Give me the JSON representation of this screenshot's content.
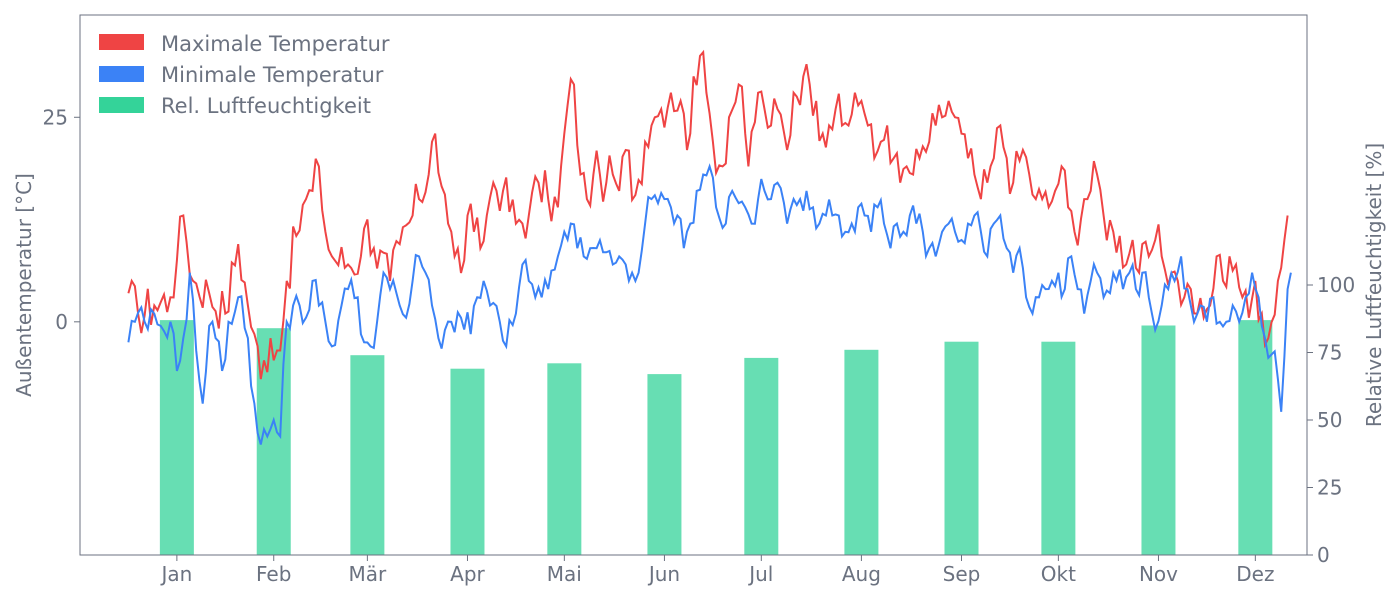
{
  "chart_data": {
    "type": "line+bar",
    "title": "",
    "colors": {
      "max": "#ef4444",
      "min": "#3b82f6",
      "humidity": "#34d399",
      "axis": "#6b7280"
    },
    "left_axis": {
      "label": "Außentemperatur [°C]",
      "ylim": [
        -28.5,
        37.5
      ],
      "ticks": [
        0,
        25
      ]
    },
    "right_axis": {
      "label": "Relative Luftfeuchtigkeit [%]",
      "ylim": [
        0,
        200
      ],
      "ticks": [
        0,
        25,
        50,
        75,
        100
      ]
    },
    "x_axis": {
      "xlim": [
        -15,
        365
      ],
      "ticks": [
        15,
        45,
        74,
        105,
        135,
        166,
        196,
        227,
        258,
        288,
        319,
        349
      ],
      "labels": [
        "Jan",
        "Feb",
        "Mär",
        "Apr",
        "Mai",
        "Jun",
        "Jul",
        "Aug",
        "Sep",
        "Okt",
        "Nov",
        "Dez"
      ]
    },
    "legend": {
      "position": "top-left",
      "entries": [
        {
          "key": "max",
          "label": "Maximale Temperatur"
        },
        {
          "key": "min",
          "label": "Minimale Temperatur"
        },
        {
          "key": "humidity",
          "label": "Rel. Luftfeuchtigkeit"
        }
      ]
    },
    "humidity_bars": {
      "x": [
        15,
        45,
        74,
        105,
        135,
        166,
        196,
        227,
        258,
        288,
        319,
        349
      ],
      "values": [
        87,
        84,
        74,
        69,
        71,
        67,
        73,
        76,
        79,
        79,
        85,
        87
      ]
    },
    "max_anchors": [
      [
        0,
        3.5
      ],
      [
        3,
        1
      ],
      [
        8,
        2
      ],
      [
        13,
        3
      ],
      [
        15,
        7.5
      ],
      [
        17,
        13
      ],
      [
        20,
        5
      ],
      [
        25,
        3.5
      ],
      [
        30,
        1
      ],
      [
        34,
        9.5
      ],
      [
        37,
        2
      ],
      [
        39,
        -1.5
      ],
      [
        41,
        -7
      ],
      [
        44,
        -2
      ],
      [
        46,
        -3.5
      ],
      [
        47,
        -3.5
      ],
      [
        49,
        5
      ],
      [
        52,
        10.5
      ],
      [
        55,
        15
      ],
      [
        57,
        16
      ],
      [
        59,
        19
      ],
      [
        61,
        11
      ],
      [
        63,
        8
      ],
      [
        68,
        7
      ],
      [
        72,
        8
      ],
      [
        74,
        12.5
      ],
      [
        76,
        9
      ],
      [
        81,
        5
      ],
      [
        84,
        9.5
      ],
      [
        88,
        13
      ],
      [
        90,
        15
      ],
      [
        93,
        18
      ],
      [
        94,
        22
      ],
      [
        95,
        23
      ],
      [
        99,
        12
      ],
      [
        100,
        11
      ],
      [
        101,
        8
      ],
      [
        104,
        7.5
      ],
      [
        105,
        13
      ],
      [
        107,
        11
      ],
      [
        109,
        9
      ],
      [
        111,
        13
      ],
      [
        113,
        17
      ],
      [
        116,
        16
      ],
      [
        120,
        12
      ],
      [
        124,
        13
      ],
      [
        127,
        17
      ],
      [
        130,
        15
      ],
      [
        133,
        14
      ],
      [
        136,
        26.5
      ],
      [
        138,
        29
      ],
      [
        140,
        18
      ],
      [
        142,
        15
      ],
      [
        144,
        18
      ],
      [
        146,
        18
      ],
      [
        148,
        17
      ],
      [
        150,
        18
      ],
      [
        152,
        16
      ],
      [
        154,
        21
      ],
      [
        157,
        15.5
      ],
      [
        160,
        22
      ],
      [
        162,
        24
      ],
      [
        163,
        25
      ],
      [
        165,
        26
      ],
      [
        168,
        28
      ],
      [
        171,
        27
      ],
      [
        173,
        21
      ],
      [
        175,
        30
      ],
      [
        177,
        32.5
      ],
      [
        179,
        28
      ],
      [
        181,
        22
      ],
      [
        184,
        19
      ],
      [
        186,
        25
      ],
      [
        189,
        29
      ],
      [
        191,
        23
      ],
      [
        192,
        19
      ],
      [
        195,
        28
      ],
      [
        197,
        26
      ],
      [
        199,
        24
      ],
      [
        201,
        26
      ],
      [
        204,
        21
      ],
      [
        206,
        28
      ],
      [
        209,
        30
      ],
      [
        211,
        29
      ],
      [
        213,
        27
      ],
      [
        215,
        23
      ],
      [
        217,
        24
      ],
      [
        219,
        26
      ],
      [
        221,
        24
      ],
      [
        223,
        24
      ],
      [
        225,
        28
      ],
      [
        227,
        27
      ],
      [
        229,
        24
      ],
      [
        231,
        20
      ],
      [
        233,
        22
      ],
      [
        235,
        24
      ],
      [
        237,
        20
      ],
      [
        239,
        17
      ],
      [
        241,
        19
      ],
      [
        243,
        18
      ],
      [
        245,
        20
      ],
      [
        248,
        22
      ],
      [
        250,
        24
      ],
      [
        252,
        25
      ],
      [
        254,
        27
      ],
      [
        256,
        25
      ],
      [
        258,
        23
      ],
      [
        260,
        20
      ],
      [
        262,
        18
      ],
      [
        264,
        15
      ],
      [
        266,
        17
      ],
      [
        268,
        20
      ],
      [
        270,
        24
      ],
      [
        272,
        20
      ],
      [
        274,
        17
      ],
      [
        277,
        21
      ],
      [
        279,
        18
      ],
      [
        281,
        15
      ],
      [
        283,
        15
      ],
      [
        285,
        14
      ],
      [
        287,
        16
      ],
      [
        289,
        19
      ],
      [
        291,
        14
      ],
      [
        293,
        11
      ],
      [
        296,
        15
      ],
      [
        298,
        16
      ],
      [
        300,
        18
      ],
      [
        302,
        13
      ],
      [
        305,
        11
      ],
      [
        307,
        10.5
      ],
      [
        309,
        7
      ],
      [
        311,
        10
      ],
      [
        313,
        6
      ],
      [
        316,
        8
      ],
      [
        318,
        10
      ],
      [
        320,
        8
      ],
      [
        323,
        6
      ],
      [
        325,
        5
      ],
      [
        327,
        3
      ],
      [
        329,
        4
      ],
      [
        331,
        1
      ],
      [
        333,
        0.5
      ],
      [
        335,
        2
      ],
      [
        337,
        8
      ],
      [
        339,
        5
      ],
      [
        341,
        8
      ],
      [
        343,
        7
      ],
      [
        345,
        3
      ],
      [
        347,
        0.5
      ],
      [
        349,
        5
      ],
      [
        351,
        1
      ],
      [
        353,
        -2
      ],
      [
        356,
        5
      ],
      [
        358,
        10
      ],
      [
        359,
        13
      ]
    ],
    "max_noise": {
      "amp": 3.0,
      "seed": 17
    },
    "min_anchors": [
      [
        0,
        -2.5
      ],
      [
        2,
        0
      ],
      [
        5,
        0
      ],
      [
        10,
        -0.5
      ],
      [
        13,
        0
      ],
      [
        15,
        -6
      ],
      [
        17,
        -2
      ],
      [
        19,
        6
      ],
      [
        21,
        -3.5
      ],
      [
        23,
        -10
      ],
      [
        25,
        -0.5
      ],
      [
        27,
        -2
      ],
      [
        29,
        -6
      ],
      [
        31,
        0
      ],
      [
        34,
        3
      ],
      [
        37,
        -2
      ],
      [
        39,
        -10
      ],
      [
        41,
        -15
      ],
      [
        43,
        -14
      ],
      [
        45,
        -12
      ],
      [
        47,
        -14
      ],
      [
        49,
        0
      ],
      [
        51,
        2
      ],
      [
        53,
        2
      ],
      [
        55,
        0.5
      ],
      [
        57,
        5
      ],
      [
        59,
        2
      ],
      [
        61,
        0
      ],
      [
        63,
        -3
      ],
      [
        66,
        2
      ],
      [
        68,
        4
      ],
      [
        71,
        3
      ],
      [
        73,
        -2.5
      ],
      [
        75,
        -3
      ],
      [
        77,
        0
      ],
      [
        79,
        6
      ],
      [
        81,
        4
      ],
      [
        84,
        2
      ],
      [
        86,
        0.5
      ],
      [
        88,
        5
      ],
      [
        90,
        8
      ],
      [
        92,
        6
      ],
      [
        94,
        2
      ],
      [
        96,
        -2
      ],
      [
        98,
        -1
      ],
      [
        100,
        0
      ],
      [
        103,
        0.5
      ],
      [
        106,
        -1.5
      ],
      [
        108,
        3
      ],
      [
        110,
        5
      ],
      [
        112,
        2
      ],
      [
        115,
        0
      ],
      [
        117,
        -3
      ],
      [
        120,
        1
      ],
      [
        122,
        7
      ],
      [
        124,
        5
      ],
      [
        126,
        3
      ],
      [
        128,
        3
      ],
      [
        130,
        4
      ],
      [
        133,
        8
      ],
      [
        135,
        11
      ],
      [
        137,
        12
      ],
      [
        139,
        9
      ],
      [
        141,
        8
      ],
      [
        143,
        9
      ],
      [
        145,
        9
      ],
      [
        147,
        8.5
      ],
      [
        150,
        7
      ],
      [
        152,
        8
      ],
      [
        154,
        7
      ],
      [
        156,
        6
      ],
      [
        158,
        6
      ],
      [
        160,
        12
      ],
      [
        162,
        15
      ],
      [
        164,
        14.5
      ],
      [
        166,
        15
      ],
      [
        168,
        14
      ],
      [
        170,
        13
      ],
      [
        172,
        9
      ],
      [
        174,
        12
      ],
      [
        176,
        16
      ],
      [
        178,
        18
      ],
      [
        180,
        19
      ],
      [
        182,
        14
      ],
      [
        185,
        12
      ],
      [
        187,
        16
      ],
      [
        189,
        14.5
      ],
      [
        191,
        14
      ],
      [
        193,
        12
      ],
      [
        195,
        15
      ],
      [
        197,
        16
      ],
      [
        199,
        15
      ],
      [
        201,
        17
      ],
      [
        204,
        12
      ],
      [
        206,
        15
      ],
      [
        208,
        15
      ],
      [
        210,
        16
      ],
      [
        212,
        14
      ],
      [
        214,
        12
      ],
      [
        216,
        13
      ],
      [
        218,
        13
      ],
      [
        220,
        13
      ],
      [
        222,
        11
      ],
      [
        224,
        12
      ],
      [
        226,
        14
      ],
      [
        228,
        13
      ],
      [
        230,
        11
      ],
      [
        232,
        14
      ],
      [
        234,
        12
      ],
      [
        236,
        9
      ],
      [
        238,
        12
      ],
      [
        240,
        11
      ],
      [
        242,
        13
      ],
      [
        244,
        12
      ],
      [
        246,
        11
      ],
      [
        248,
        9
      ],
      [
        250,
        8
      ],
      [
        252,
        11
      ],
      [
        254,
        12
      ],
      [
        256,
        11
      ],
      [
        258,
        10
      ],
      [
        260,
        12
      ],
      [
        262,
        13
      ],
      [
        264,
        11
      ],
      [
        266,
        8
      ],
      [
        268,
        12
      ],
      [
        270,
        13
      ],
      [
        272,
        9
      ],
      [
        274,
        6
      ],
      [
        276,
        9
      ],
      [
        278,
        3
      ],
      [
        280,
        1
      ],
      [
        282,
        3
      ],
      [
        284,
        4
      ],
      [
        286,
        5
      ],
      [
        288,
        6
      ],
      [
        290,
        4
      ],
      [
        292,
        8
      ],
      [
        294,
        4
      ],
      [
        296,
        1
      ],
      [
        298,
        5
      ],
      [
        300,
        6
      ],
      [
        302,
        3
      ],
      [
        304,
        3.5
      ],
      [
        306,
        5
      ],
      [
        308,
        4
      ],
      [
        310,
        6
      ],
      [
        312,
        4
      ],
      [
        314,
        6
      ],
      [
        316,
        3
      ],
      [
        318,
        -1
      ],
      [
        320,
        2
      ],
      [
        322,
        4
      ],
      [
        324,
        5
      ],
      [
        326,
        8
      ],
      [
        328,
        4
      ],
      [
        330,
        0
      ],
      [
        332,
        2
      ],
      [
        334,
        0
      ],
      [
        336,
        3
      ],
      [
        338,
        0
      ],
      [
        340,
        0
      ],
      [
        342,
        2
      ],
      [
        344,
        0
      ],
      [
        346,
        3
      ],
      [
        348,
        6
      ],
      [
        350,
        3
      ],
      [
        352,
        -2
      ],
      [
        354,
        -4
      ],
      [
        356,
        -7
      ],
      [
        357,
        -11
      ],
      [
        359,
        4
      ],
      [
        360,
        6
      ]
    ],
    "min_noise": {
      "amp": 2.0,
      "seed": 91
    }
  }
}
